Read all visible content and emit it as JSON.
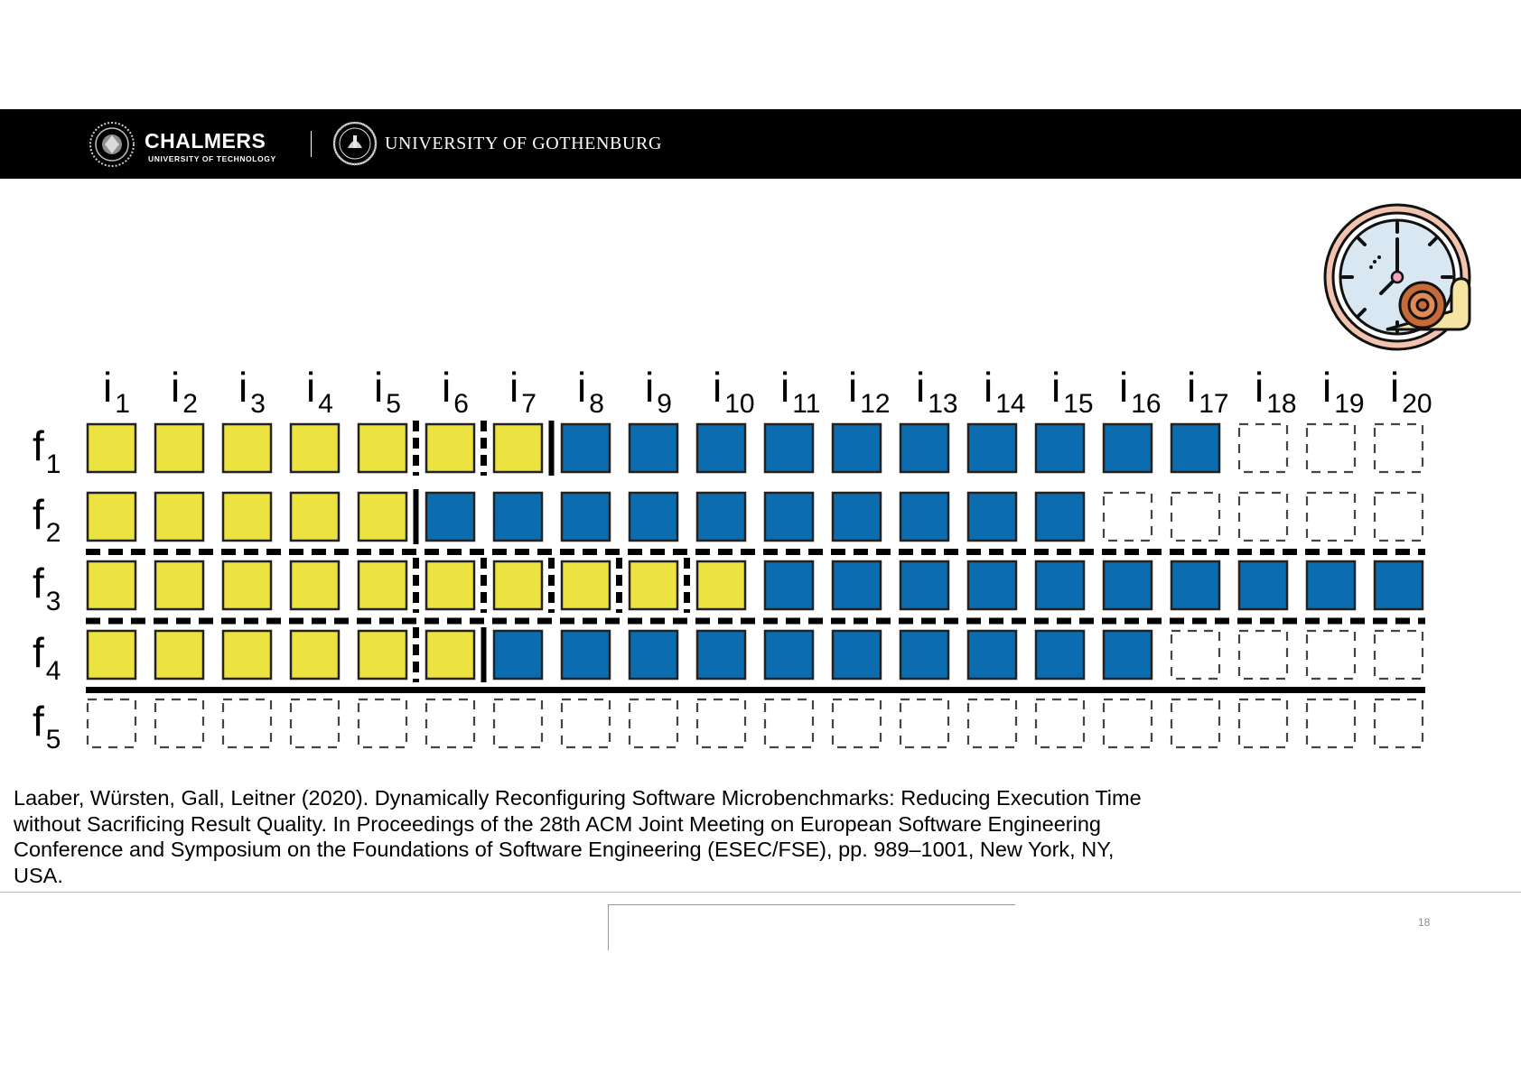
{
  "header": {
    "chalmers_name": "CHALMERS",
    "chalmers_subtitle": "UNIVERSITY OF TECHNOLOGY",
    "gu_name": "UNIVERSITY OF GOTHENBURG"
  },
  "icons": {
    "clock": "clock-with-snail-icon",
    "chalmers_seal": "chalmers-seal-icon",
    "gu_seal": "gothenburg-seal-icon"
  },
  "colors": {
    "yellow": "#EDE340",
    "blue": "#0B6DB0",
    "header_bg": "#000000"
  },
  "diagram": {
    "column_prefix": "i",
    "row_prefix": "f",
    "columns": [
      "1",
      "2",
      "3",
      "4",
      "5",
      "6",
      "7",
      "8",
      "9",
      "10",
      "11",
      "12",
      "13",
      "14",
      "15",
      "16",
      "17",
      "18",
      "19",
      "20"
    ],
    "rows": [
      {
        "index": "1",
        "yellow": 7,
        "blue": 10,
        "dashed_separators_after": [
          5,
          6
        ],
        "solid_separator_after": 7
      },
      {
        "index": "2",
        "yellow": 5,
        "blue": 10,
        "dashed_separators_after": [],
        "solid_separator_after": 5
      },
      {
        "index": "3",
        "yellow": 10,
        "blue": 10,
        "dashed_separators_after": [
          5,
          6,
          7,
          8,
          9
        ],
        "solid_separator_after": null
      },
      {
        "index": "4",
        "yellow": 6,
        "blue": 10,
        "dashed_separators_after": [
          5
        ],
        "solid_separator_after": 6
      },
      {
        "index": "5",
        "yellow": 0,
        "blue": 0,
        "dashed_separators_after": [],
        "solid_separator_after": null
      }
    ],
    "row_dividers": [
      {
        "after_row": 2,
        "style": "dashed"
      },
      {
        "after_row": 3,
        "style": "dashed"
      },
      {
        "after_row": 4,
        "style": "solid"
      }
    ]
  },
  "citation": "Laaber, Würsten, Gall, Leitner (2020). Dynamically Reconfiguring Software Microbenchmarks: Reducing Execution Time without Sacrificing Result Quality. In Proceedings of the 28th ACM Joint Meeting on European Software Engineering Conference and Symposium on the Foundations of Software Engineering (ESEC/FSE), pp. 989–1001, New York, NY, USA.",
  "page_number": "18"
}
